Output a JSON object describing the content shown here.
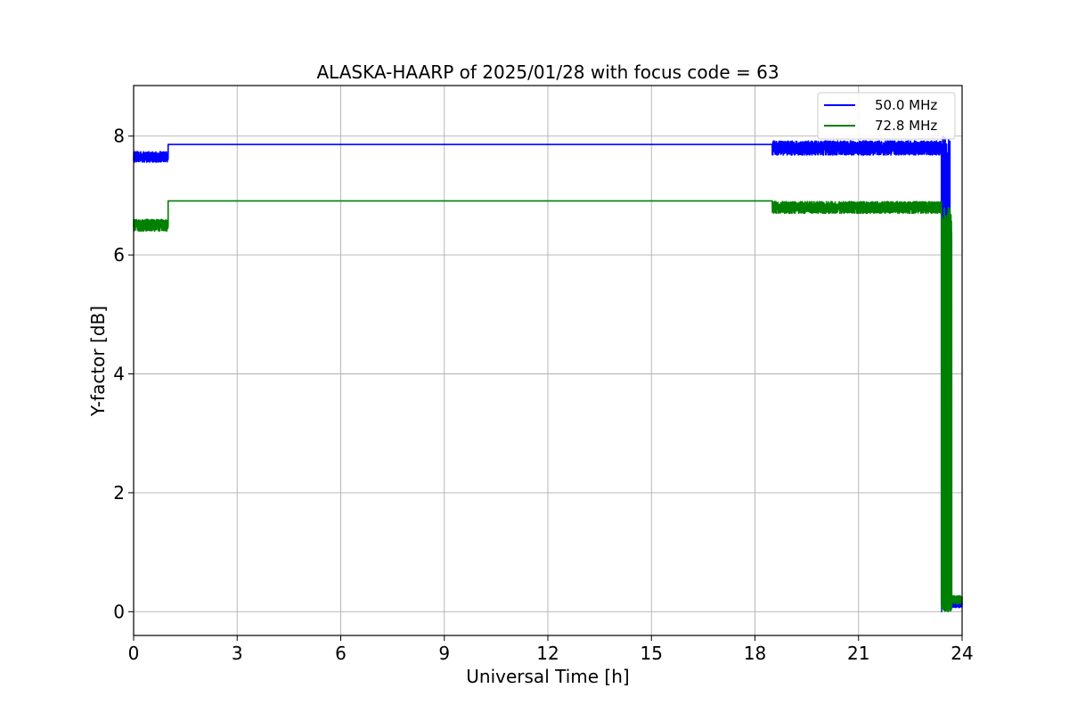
{
  "chart_data": {
    "type": "line",
    "title": "ALASKA-HAARP of 2025/01/28 with focus code = 63",
    "xlabel": "Universal Time [h]",
    "ylabel": "Y-factor [dB]",
    "xlim": [
      0,
      24
    ],
    "ylim": [
      -0.4,
      8.85
    ],
    "xticks": [
      0,
      3,
      6,
      9,
      12,
      15,
      18,
      21,
      24
    ],
    "yticks": [
      0,
      2,
      4,
      6,
      8
    ],
    "grid": true,
    "legend_position": "top-right",
    "series": [
      {
        "name": "50.0 MHz",
        "color": "#0000ff",
        "segments": [
          {
            "x_start": 0.0,
            "x_end": 1.0,
            "base": 7.65,
            "noise": 0.09
          },
          {
            "x_start": 1.0,
            "x_end": 18.5,
            "base": 7.86,
            "noise": 0.0
          },
          {
            "x_start": 18.5,
            "x_end": 23.4,
            "base": 7.8,
            "noise": 0.12
          },
          {
            "x_start": 23.4,
            "x_end": 23.65,
            "base": 4.0,
            "noise": 4.0
          },
          {
            "x_start": 23.65,
            "x_end": 24.0,
            "base": 0.12,
            "noise": 0.05
          }
        ],
        "points": [
          [
            0.0,
            7.65
          ],
          [
            1.0,
            7.68
          ],
          [
            1.0,
            7.85
          ],
          [
            18.5,
            7.87
          ],
          [
            18.5,
            8.02
          ],
          [
            18.7,
            7.8
          ],
          [
            19.0,
            7.65
          ],
          [
            19.5,
            7.78
          ],
          [
            20.0,
            7.92
          ],
          [
            20.5,
            7.85
          ],
          [
            21.0,
            7.8
          ],
          [
            21.5,
            7.78
          ],
          [
            22.0,
            7.7
          ],
          [
            22.5,
            7.75
          ],
          [
            23.0,
            7.78
          ],
          [
            23.35,
            7.85
          ],
          [
            23.45,
            4.5
          ],
          [
            23.5,
            7.9
          ],
          [
            23.55,
            0.05
          ],
          [
            23.6,
            7.8
          ],
          [
            23.65,
            0.3
          ],
          [
            23.7,
            0.1
          ],
          [
            24.0,
            0.08
          ]
        ]
      },
      {
        "name": "72.8 MHz",
        "color": "#008000",
        "segments": [
          {
            "x_start": 0.0,
            "x_end": 1.0,
            "base": 6.5,
            "noise": 0.1
          },
          {
            "x_start": 1.0,
            "x_end": 18.5,
            "base": 6.91,
            "noise": 0.0
          },
          {
            "x_start": 18.5,
            "x_end": 23.4,
            "base": 6.8,
            "noise": 0.1
          },
          {
            "x_start": 23.4,
            "x_end": 23.7,
            "base": 3.4,
            "noise": 3.4
          },
          {
            "x_start": 23.7,
            "x_end": 24.0,
            "base": 0.2,
            "noise": 0.07
          }
        ],
        "points": [
          [
            0.0,
            6.55
          ],
          [
            1.0,
            6.45
          ],
          [
            1.0,
            6.9
          ],
          [
            18.5,
            6.92
          ],
          [
            18.5,
            7.15
          ],
          [
            18.7,
            6.85
          ],
          [
            19.5,
            6.8
          ],
          [
            20.5,
            6.88
          ],
          [
            21.0,
            6.85
          ],
          [
            21.5,
            6.8
          ],
          [
            22.0,
            6.72
          ],
          [
            22.5,
            6.78
          ],
          [
            23.0,
            6.75
          ],
          [
            23.35,
            6.8
          ],
          [
            23.45,
            5.6
          ],
          [
            23.5,
            0.05
          ],
          [
            23.55,
            6.8
          ],
          [
            23.6,
            0.5
          ],
          [
            23.65,
            6.7
          ],
          [
            23.7,
            0.2
          ],
          [
            24.0,
            0.2
          ]
        ]
      }
    ]
  }
}
